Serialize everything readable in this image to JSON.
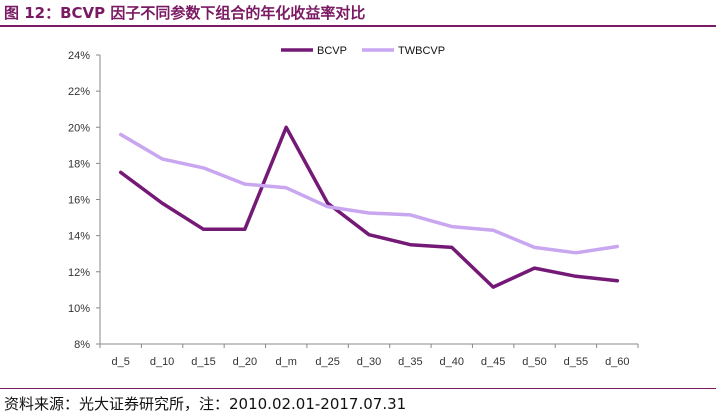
{
  "figure": {
    "title": "图 12：BCVP 因子不同参数下组合的年化收益率对比",
    "source": "资料来源：光大证券研究所，注：2010.02.01-2017.07.31"
  },
  "colors": {
    "BCVP": "#741a76",
    "TWBCVP": "#c9a6f0",
    "accent": "#7a1a63",
    "axis": "#888888"
  },
  "chart_data": {
    "type": "line",
    "categories": [
      "d_5",
      "d_10",
      "d_15",
      "d_20",
      "d_m",
      "d_25",
      "d_30",
      "d_35",
      "d_40",
      "d_45",
      "d_50",
      "d_55",
      "d_60"
    ],
    "series": [
      {
        "name": "BCVP",
        "values": [
          17.5,
          15.8,
          14.35,
          14.35,
          20.0,
          15.8,
          14.05,
          13.5,
          13.35,
          11.15,
          12.2,
          11.75,
          11.5
        ]
      },
      {
        "name": "TWBCVP",
        "values": [
          19.6,
          18.25,
          17.75,
          16.85,
          16.65,
          15.6,
          15.25,
          15.15,
          14.5,
          14.3,
          13.35,
          13.05,
          13.4
        ]
      }
    ],
    "y_ticks": [
      "8%",
      "10%",
      "12%",
      "14%",
      "16%",
      "18%",
      "20%",
      "22%",
      "24%"
    ],
    "ylim": [
      8,
      24
    ],
    "y_unit": "%",
    "legend_position": "top",
    "grid": false
  }
}
